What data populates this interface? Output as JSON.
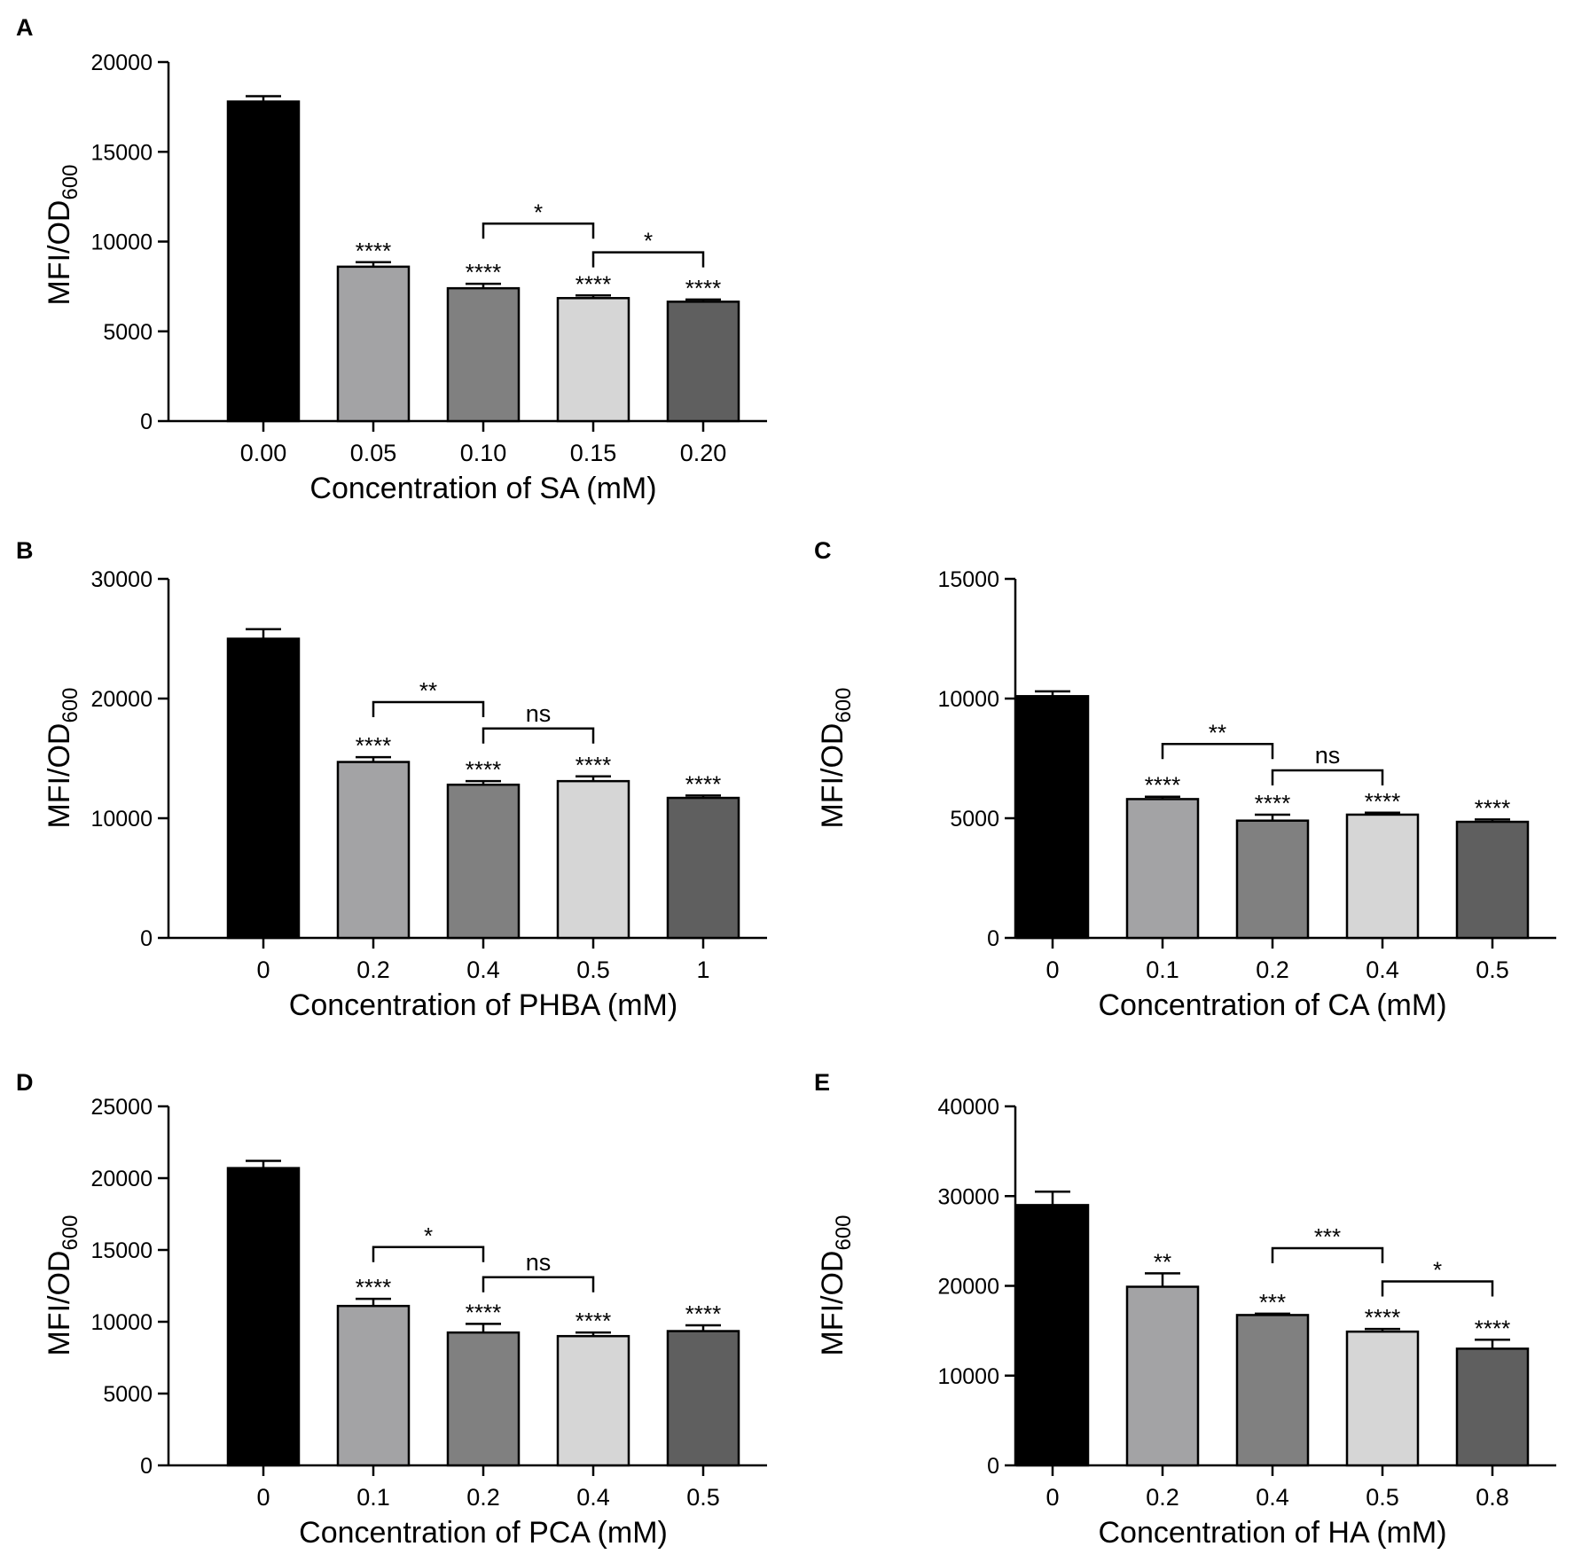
{
  "chart_data": [
    {
      "panel": "A",
      "type": "bar",
      "xlabel": "Concentration of SA (mM)",
      "ylabel": "MFI/OD600",
      "ylabel_main": "MFI/OD",
      "ylabel_sub": "600",
      "ylim": [
        0,
        20000
      ],
      "yticks": [
        0,
        5000,
        10000,
        15000,
        20000
      ],
      "categories": [
        "0.00",
        "0.05",
        "0.10",
        "0.15",
        "0.20"
      ],
      "values": [
        17800,
        8600,
        7400,
        6850,
        6650
      ],
      "errors": [
        300,
        250,
        250,
        150,
        120
      ],
      "bar_colors": [
        "#000000",
        "#a3a3a5",
        "#808080",
        "#d6d6d6",
        "#5f5f5f"
      ],
      "significance": [
        "",
        "****",
        "****",
        "****",
        "****"
      ],
      "comparisons": [
        {
          "from": 2,
          "to": 3,
          "label": "*",
          "level": 11000
        },
        {
          "from": 3,
          "to": 4,
          "label": "*",
          "level": 9400
        }
      ]
    },
    {
      "panel": "B",
      "type": "bar",
      "xlabel": "Concentration of PHBA (mM)",
      "ylabel": "MFI/OD600",
      "ylabel_main": "MFI/OD",
      "ylabel_sub": "600",
      "ylim": [
        0,
        30000
      ],
      "yticks": [
        0,
        10000,
        20000,
        30000
      ],
      "categories": [
        "0",
        "0.2",
        "0.4",
        "0.5",
        "1"
      ],
      "values": [
        25000,
        14700,
        12800,
        13100,
        11700
      ],
      "errors": [
        800,
        400,
        300,
        400,
        200
      ],
      "bar_colors": [
        "#000000",
        "#a3a3a5",
        "#808080",
        "#d6d6d6",
        "#5f5f5f"
      ],
      "significance": [
        "",
        "****",
        "****",
        "****",
        "****"
      ],
      "comparisons": [
        {
          "from": 1,
          "to": 2,
          "label": "**",
          "level": 19700
        },
        {
          "from": 2,
          "to": 3,
          "label": "ns",
          "level": 17500
        }
      ]
    },
    {
      "panel": "C",
      "type": "bar",
      "xlabel": "Concentration of CA (mM)",
      "ylabel": "MFI/OD600",
      "ylabel_main": "MFI/OD",
      "ylabel_sub": "600",
      "ylim": [
        0,
        15000
      ],
      "yticks": [
        0,
        5000,
        10000,
        15000
      ],
      "categories": [
        "0",
        "0.1",
        "0.2",
        "0.4",
        "0.5"
      ],
      "values": [
        10100,
        5800,
        4900,
        5150,
        4850
      ],
      "errors": [
        200,
        100,
        250,
        80,
        100
      ],
      "bar_colors": [
        "#000000",
        "#a3a3a5",
        "#808080",
        "#d6d6d6",
        "#5f5f5f"
      ],
      "significance": [
        "",
        "****",
        "****",
        "****",
        "****"
      ],
      "comparisons": [
        {
          "from": 1,
          "to": 2,
          "label": "**",
          "level": 8100
        },
        {
          "from": 2,
          "to": 3,
          "label": "ns",
          "level": 7000
        }
      ]
    },
    {
      "panel": "D",
      "type": "bar",
      "xlabel": "Concentration of PCA (mM)",
      "ylabel": "MFI/OD600",
      "ylabel_main": "MFI/OD",
      "ylabel_sub": "600",
      "ylim": [
        0,
        25000
      ],
      "yticks": [
        0,
        5000,
        10000,
        15000,
        20000,
        25000
      ],
      "categories": [
        "0",
        "0.1",
        "0.2",
        "0.4",
        "0.5"
      ],
      "values": [
        20700,
        11100,
        9250,
        9000,
        9350
      ],
      "errors": [
        500,
        500,
        600,
        250,
        400
      ],
      "bar_colors": [
        "#000000",
        "#a3a3a5",
        "#808080",
        "#d6d6d6",
        "#5f5f5f"
      ],
      "significance": [
        "",
        "****",
        "****",
        "****",
        "****"
      ],
      "comparisons": [
        {
          "from": 1,
          "to": 2,
          "label": "*",
          "level": 15200
        },
        {
          "from": 2,
          "to": 3,
          "label": "ns",
          "level": 13100
        }
      ]
    },
    {
      "panel": "E",
      "type": "bar",
      "xlabel": "Concentration of HA (mM)",
      "ylabel": "MFI/OD600",
      "ylabel_main": "MFI/OD",
      "ylabel_sub": "600",
      "ylim": [
        0,
        40000
      ],
      "yticks": [
        0,
        10000,
        20000,
        30000,
        40000
      ],
      "categories": [
        "0",
        "0.2",
        "0.4",
        "0.5",
        "0.8"
      ],
      "values": [
        29000,
        19900,
        16750,
        14900,
        13000
      ],
      "errors": [
        1500,
        1500,
        150,
        300,
        1000
      ],
      "bar_colors": [
        "#000000",
        "#a3a3a5",
        "#808080",
        "#d6d6d6",
        "#5f5f5f"
      ],
      "significance": [
        "",
        "**",
        "***",
        "****",
        "****"
      ],
      "comparisons": [
        {
          "from": 2,
          "to": 3,
          "label": "***",
          "level": 24200
        },
        {
          "from": 3,
          "to": 4,
          "label": "*",
          "level": 20500
        }
      ]
    }
  ]
}
